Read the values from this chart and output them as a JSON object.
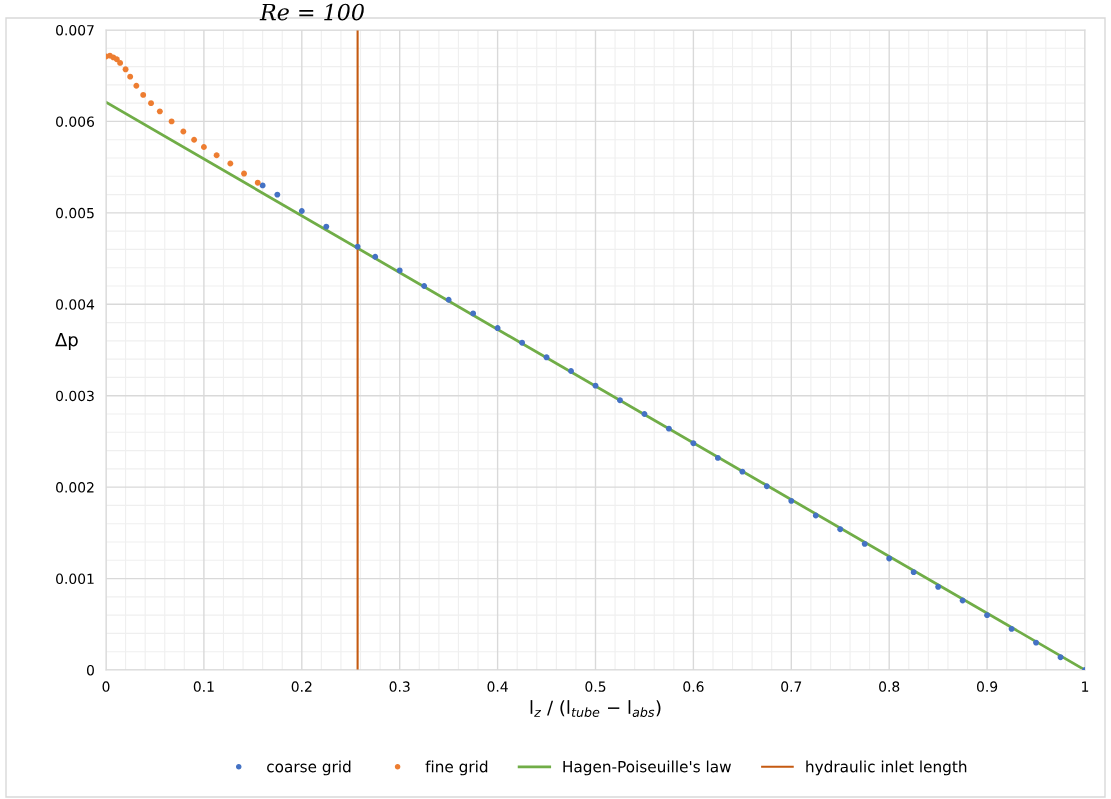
{
  "chart_data": {
    "type": "scatter",
    "xlabel": "l$_{z}$ / (l$_{tube}$ − l$_{abs}$)",
    "ylabel": "Δp",
    "annotations": [
      "Re = 100"
    ],
    "xlim": [
      0,
      1
    ],
    "xticks": [
      0,
      0.1,
      0.2,
      0.3,
      0.4,
      0.5,
      0.6,
      0.7,
      0.8,
      0.9,
      1
    ],
    "ylim": [
      0,
      0.007
    ],
    "yticks": [
      0,
      0.001,
      0.002,
      0.003,
      0.004,
      0.005,
      0.006,
      0.007
    ],
    "grid": true,
    "legend": "bottom",
    "series": [
      {
        "name": "coarse grid",
        "marker": "circle",
        "color": "#4472c4",
        "x": [
          0.16,
          0.175,
          0.2,
          0.225,
          0.257,
          0.275,
          0.3,
          0.325,
          0.35,
          0.375,
          0.4,
          0.425,
          0.45,
          0.475,
          0.5,
          0.525,
          0.55,
          0.575,
          0.6,
          0.625,
          0.65,
          0.675,
          0.7,
          0.725,
          0.75,
          0.775,
          0.8,
          0.825,
          0.85,
          0.875,
          0.9,
          0.925,
          0.95,
          0.975,
          1
        ],
        "values": [
          0.0053,
          0.0052,
          0.00502,
          0.00485,
          0.00463,
          0.00452,
          0.00437,
          0.0042,
          0.00405,
          0.0039,
          0.00374,
          0.00358,
          0.00342,
          0.00327,
          0.00311,
          0.00295,
          0.0028,
          0.00264,
          0.00248,
          0.00232,
          0.00217,
          0.00201,
          0.00185,
          0.00169,
          0.00154,
          0.00138,
          0.00122,
          0.00107,
          0.00091,
          0.00076,
          0.0006,
          0.00045,
          0.0003,
          0.00014,
          0
        ]
      },
      {
        "name": "fine grid",
        "marker": "circle",
        "color": "#ed7d31",
        "x": [
          0,
          0.004,
          0.0075,
          0.011,
          0.0144,
          0.02,
          0.0247,
          0.031,
          0.038,
          0.046,
          0.055,
          0.067,
          0.079,
          0.09,
          0.1,
          0.113,
          0.127,
          0.141,
          0.155
        ],
        "values": [
          0.00671,
          0.00672,
          0.0067,
          0.00668,
          0.00664,
          0.00657,
          0.00649,
          0.00639,
          0.00629,
          0.0062,
          0.00611,
          0.006,
          0.00589,
          0.0058,
          0.00572,
          0.00563,
          0.00554,
          0.00543,
          0.00533
        ]
      },
      {
        "name": "Hagen-Poiseuille's law",
        "type": "line",
        "color": "#70ad47",
        "x": [
          0,
          1
        ],
        "values": [
          0.00621,
          0
        ]
      }
    ],
    "ref_lines": [
      {
        "axis": "x",
        "value": 0.257,
        "label": "hydraulic inlet length",
        "color": "#c55a11"
      }
    ]
  }
}
